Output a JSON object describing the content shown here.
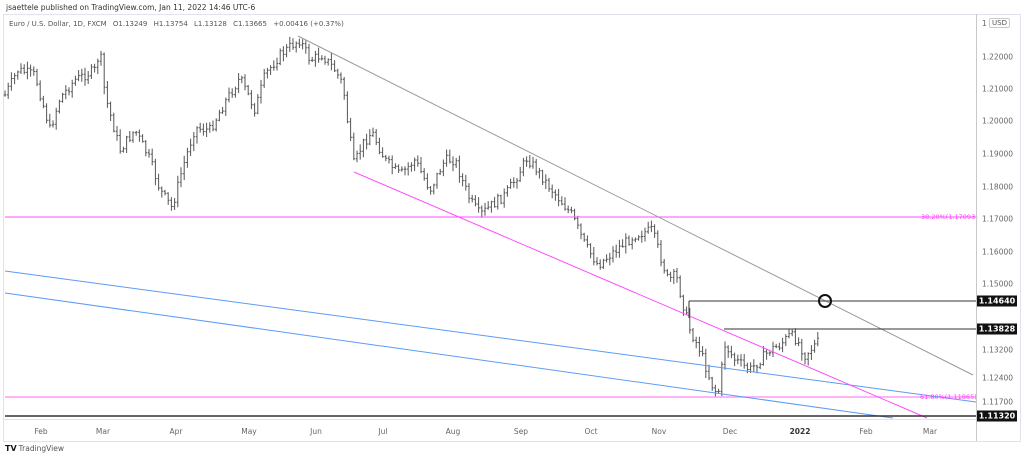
{
  "header": {
    "published": "jsaettele published on TradingView.com, Jan 11, 2022 14:46 UTC-6"
  },
  "legend": {
    "symbol": "Euro / U.S. Dollar, 1D, FXCM",
    "open": "O1.13249",
    "high": "H1.13754",
    "low": "L1.13128",
    "close": "C1.13665",
    "change": "+0.00416 (+0.37%)"
  },
  "axis": {
    "currency_prefix": "1",
    "currency": "USD",
    "price_ticks": [
      "1.22000",
      "1.21000",
      "1.20000",
      "1.19000",
      "1.18000",
      "1.17000",
      "1.16000",
      "1.15000",
      "1.13200",
      "1.12400",
      "1.11700"
    ],
    "time_ticks": [
      "Feb",
      "Mar",
      "Apr",
      "May",
      "Jun",
      "Jul",
      "Aug",
      "Sep",
      "Oct",
      "Nov",
      "Dec",
      "2022",
      "Feb",
      "Mar"
    ],
    "price_tags": [
      "1.14640",
      "1.13828",
      "1.11320"
    ]
  },
  "annotations": {
    "fib_382": "38.20%(1.17093)",
    "fib_618": "61.80%(1.11865)"
  },
  "footer": {
    "brand": "TradingView"
  },
  "colors": {
    "bars": "#555555",
    "trendline": "#9a9a9a",
    "channel": "#ff4dff",
    "fib": "#ff4dff",
    "blue": "#5b9bf5",
    "level": "#333333"
  },
  "chart_data": {
    "type": "ohlc",
    "title": "Euro / U.S. Dollar, 1D, FXCM",
    "xlabel": "",
    "ylabel": "USD",
    "ylim": [
      1.1132,
      1.23
    ],
    "x_ticks": [
      "Feb 2021",
      "Mar",
      "Apr",
      "May",
      "Jun",
      "Jul",
      "Aug",
      "Sep",
      "Oct",
      "Nov",
      "Dec",
      "2022",
      "Feb",
      "Mar"
    ],
    "last": {
      "open": 1.13249,
      "high": 1.13754,
      "low": 1.13128,
      "close": 1.13665,
      "change": 0.00416,
      "change_pct": 0.37
    },
    "approx_closes_by_month": {
      "Jan 2021": 1.213,
      "Feb 2021": 1.208,
      "Mar 2021": 1.178,
      "Apr 2021": 1.202,
      "May 2021": 1.223,
      "Jun 2021": 1.186,
      "Jul 2021": 1.187,
      "Aug 2021": 1.181,
      "Sep 2021": 1.158,
      "Oct 2021": 1.156,
      "Nov 2021": 1.132,
      "Dec 2021": 1.137,
      "Jan 2022": 1.1367
    },
    "key_points": [
      {
        "label": "May 2021 high",
        "value": 1.2266
      },
      {
        "label": "Mar 31 2021 low",
        "value": 1.1704
      },
      {
        "label": "Nov 24 2021 low",
        "value": 1.1186
      }
    ],
    "horizontal_levels": [
      {
        "label": "38.20% fib",
        "value": 1.17093,
        "color": "#ff4dff"
      },
      {
        "label": "resistance",
        "value": 1.1464,
        "color": "#333333"
      },
      {
        "label": "resistance",
        "value": 1.13828,
        "color": "#333333"
      },
      {
        "label": "61.80% fib",
        "value": 1.11865,
        "color": "#ff4dff"
      },
      {
        "label": "support",
        "value": 1.1132,
        "color": "#333333"
      }
    ],
    "trendlines": [
      {
        "name": "upper downtrend",
        "color": "#9a9a9a",
        "from": "Jun 2021 @1.2266",
        "to": "Mar 2022 @~1.124"
      },
      {
        "name": "lower channel",
        "color": "#ff4dff",
        "from": "Jun 18 2021 @1.185",
        "to": "Mar 2022 @~1.113"
      },
      {
        "name": "blue line 1",
        "color": "#5b9bf5"
      },
      {
        "name": "blue line 2",
        "color": "#5b9bf5"
      }
    ],
    "grid": false
  }
}
